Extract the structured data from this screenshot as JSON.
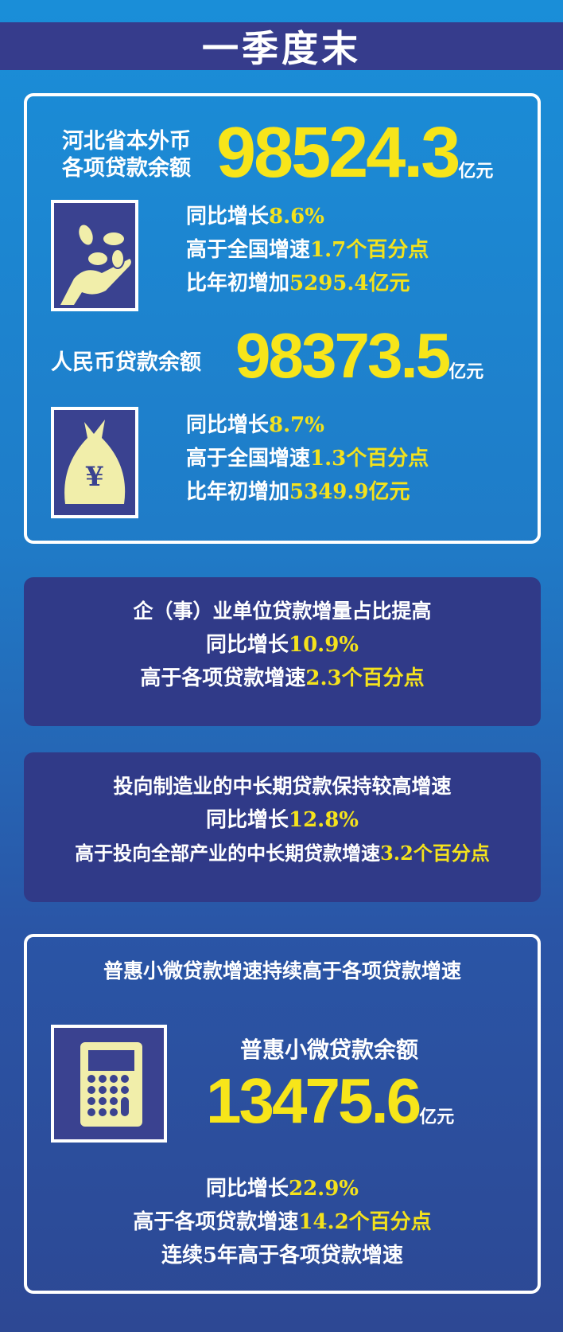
{
  "title": "一季度末",
  "section1": {
    "label_line1": "河北省本外币",
    "label_line2": "各项贷款余额",
    "value": "98524.3",
    "unit": "亿元",
    "icon": "hand-coins-icon",
    "lines": [
      {
        "text": "同比增长",
        "value": "8.6%"
      },
      {
        "text": "高于全国增速",
        "value": "1.7个百分点"
      },
      {
        "text": "比年初增加",
        "value": "5295.4亿元"
      }
    ],
    "rmb_label": "人民币贷款余额",
    "rmb_value": "98373.5",
    "rmb_unit": "亿元",
    "rmb_icon": "money-bag-yuan-icon",
    "yuan": "¥",
    "rmb_lines": [
      {
        "text": "同比增长",
        "value": "8.7%"
      },
      {
        "text": "高于全国增速",
        "value": "1.3个百分点"
      },
      {
        "text": "比年初增加",
        "value": "5349.9亿元"
      }
    ]
  },
  "section2": {
    "heading": "企（事）业单位贷款增量占比提高",
    "lines": [
      {
        "text": "同比增长",
        "value": "10.9%"
      },
      {
        "text": "高于各项贷款增速",
        "value": "2.3个百分点"
      }
    ]
  },
  "section3": {
    "heading": "投向制造业的中长期贷款保持较高增速",
    "lines": [
      {
        "text": "同比增长",
        "value": "12.8%"
      },
      {
        "text": "高于投向全部产业的中长期贷款增速",
        "value": "3.2个百分点"
      }
    ]
  },
  "section4": {
    "heading": "普惠小微贷款增速持续高于各项贷款增速",
    "icon": "calculator-icon",
    "label": "普惠小微贷款余额",
    "value": "13475.6",
    "unit": "亿元",
    "lines": [
      {
        "text": "同比增长",
        "value": "22.9%"
      },
      {
        "text": "高于各项贷款增速",
        "value": "14.2个百分点"
      }
    ],
    "last": "连续5年高于各项贷款增速"
  },
  "colors": {
    "accent": "#f4e21c",
    "banner": "#363c8c",
    "panel": "#303a88"
  }
}
